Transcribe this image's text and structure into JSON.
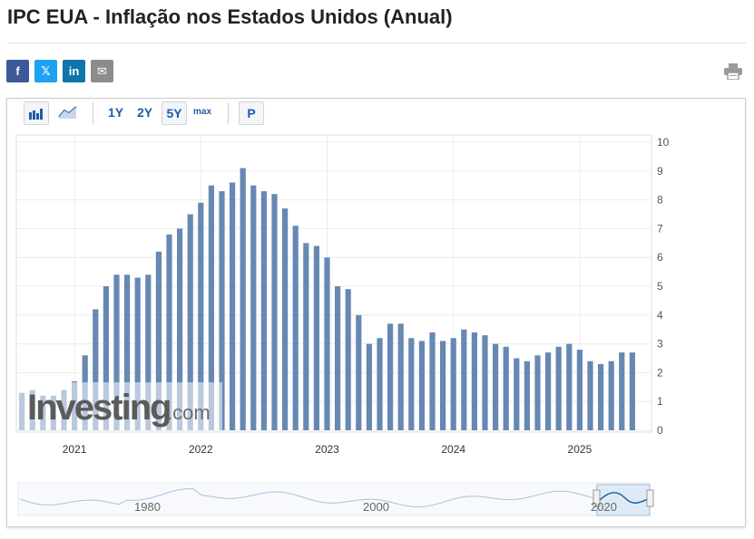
{
  "page": {
    "title": "IPC EUA - Inflação nos Estados Unidos (Anual)"
  },
  "share": {
    "facebook_icon": "facebook-icon",
    "x_icon": "x-icon",
    "linkedin_icon": "linkedin-icon",
    "email_icon": "email-icon",
    "print_icon": "printer-icon",
    "facebook_label": "f",
    "x_label": "𝕏",
    "linkedin_label": "in",
    "email_label": "✉"
  },
  "toolbar": {
    "bar_chart_icon": "bar-chart-icon",
    "line_chart_icon": "line-chart-icon",
    "range_1y": "1Y",
    "range_2y": "2Y",
    "range_5y": "5Y",
    "range_max": "max",
    "selected_range": "5Y",
    "p_button": "P"
  },
  "watermark": {
    "brand_main": "Investing",
    "brand_suffix": ".com"
  },
  "colors": {
    "bar": "#6688b3",
    "accent": "#1f5da6",
    "navigator_fill": "#d6e6f5",
    "navigator_line": "#a9c1dc"
  },
  "chart_data": {
    "type": "bar",
    "x_start": "2020-08",
    "x_interval": "month",
    "values": [
      1.3,
      1.4,
      1.2,
      1.2,
      1.4,
      1.7,
      2.6,
      4.2,
      5.0,
      5.4,
      5.4,
      5.3,
      5.4,
      6.2,
      6.8,
      7.0,
      7.5,
      7.9,
      8.5,
      8.3,
      8.6,
      9.1,
      8.5,
      8.3,
      8.2,
      7.7,
      7.1,
      6.5,
      6.4,
      6.0,
      5.0,
      4.9,
      4.0,
      3.0,
      3.2,
      3.7,
      3.7,
      3.2,
      3.1,
      3.4,
      3.1,
      3.2,
      3.5,
      3.4,
      3.3,
      3.0,
      2.9,
      2.5,
      2.4,
      2.6,
      2.7,
      2.9,
      3.0,
      2.8,
      2.4,
      2.3,
      2.4,
      2.7,
      2.7
    ],
    "x_tick_labels": [
      "2021",
      "2022",
      "2023",
      "2024",
      "2025"
    ],
    "y_ticks": [
      0,
      1,
      2,
      3,
      4,
      5,
      6,
      7,
      8,
      9,
      10
    ],
    "ylim": [
      0,
      10
    ],
    "grid": true,
    "title": "",
    "xlabel": "",
    "ylabel": "",
    "navigator": {
      "labels": [
        "1980",
        "2000",
        "2020"
      ],
      "selected": "2020–2025"
    }
  }
}
